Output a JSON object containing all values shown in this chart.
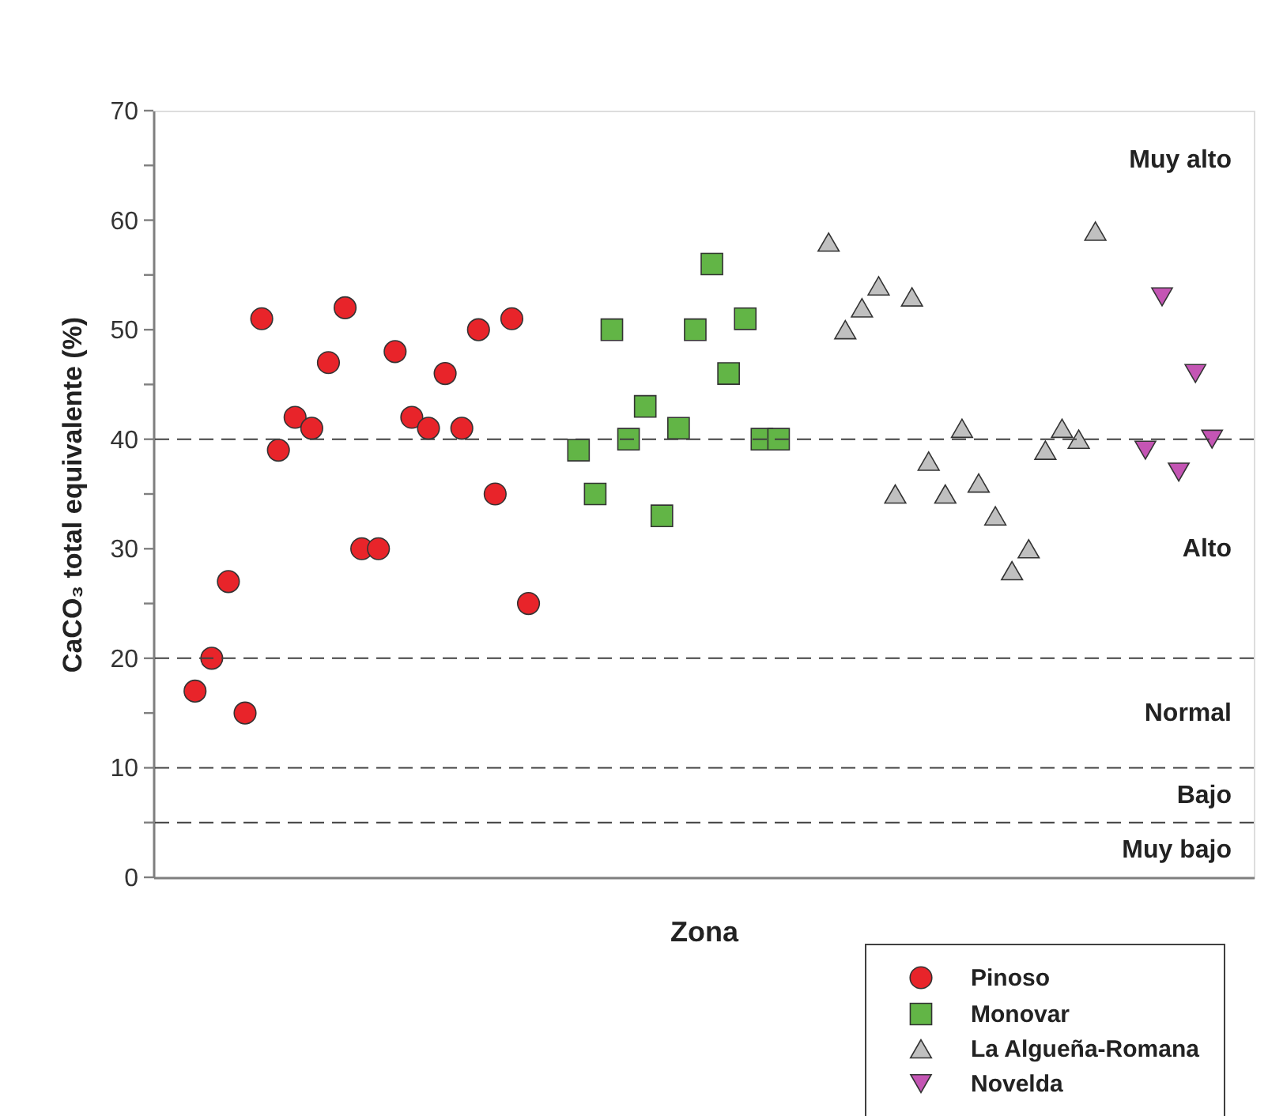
{
  "chart_data": {
    "type": "scatter",
    "xlabel": "Zona",
    "ylabel": "CaCO₃ total equivalente (%)",
    "categories": [
      null,
      null,
      null,
      null,
      null,
      null,
      null,
      null,
      null,
      null,
      null,
      null,
      null,
      null,
      null,
      null,
      null,
      null,
      null,
      null,
      null,
      null,
      null,
      null,
      null,
      null,
      null,
      null,
      null,
      null,
      null,
      null,
      null,
      null,
      null,
      null,
      null,
      null,
      null,
      null,
      null,
      null,
      null,
      null,
      null,
      null,
      null,
      null,
      null,
      null,
      null,
      null,
      null,
      null,
      null,
      null,
      null,
      null,
      null,
      null,
      null,
      null,
      null,
      null,
      null,
      null
    ],
    "ylim": [
      0,
      70
    ],
    "yticks": [
      0,
      {
        "value": 5,
        "label": null
      },
      10,
      {
        "value": 15,
        "label": null
      },
      20,
      {
        "value": 25,
        "label": null
      },
      30,
      {
        "value": 35,
        "label": null
      },
      40,
      {
        "value": 45,
        "label": null
      },
      50,
      {
        "value": 55,
        "label": null
      },
      60,
      {
        "value": 65,
        "label": null
      },
      70
    ],
    "tick_labels": "y",
    "legend": "bottom right",
    "series": [
      {
        "name": "Pinoso",
        "color": "#e8242a",
        "marker": "circle",
        "values": [
          null,
          null,
          17,
          20,
          27,
          15,
          51,
          39,
          42,
          41,
          47,
          52,
          30,
          30,
          48,
          42,
          41,
          46,
          41,
          50,
          35,
          51,
          25,
          null,
          null,
          null,
          null,
          null,
          null,
          null,
          null,
          null,
          null,
          null,
          null,
          null,
          null,
          null,
          null,
          null,
          null,
          null,
          null,
          null,
          null,
          null,
          null,
          null,
          null,
          null,
          null,
          null,
          null,
          null,
          null,
          null,
          null,
          null,
          null,
          null,
          null,
          null,
          null,
          null,
          null,
          null
        ]
      },
      {
        "name": "Monovar",
        "color": "#62b546",
        "marker": "square",
        "values": [
          null,
          null,
          null,
          null,
          null,
          null,
          null,
          null,
          null,
          null,
          null,
          null,
          null,
          null,
          null,
          null,
          null,
          null,
          null,
          null,
          null,
          null,
          null,
          null,
          null,
          39,
          35,
          50,
          40,
          43,
          33,
          41,
          50,
          56,
          46,
          51,
          40,
          40,
          null,
          null,
          null,
          null,
          null,
          null,
          null,
          null,
          null,
          null,
          null,
          null,
          null,
          null,
          null,
          null,
          null,
          null,
          null,
          null,
          null,
          null,
          null,
          null,
          null,
          null,
          null,
          null
        ]
      },
      {
        "name": "La Algueña-Romana",
        "color": "#c0c0c0",
        "marker": "triangle",
        "values": [
          null,
          null,
          null,
          null,
          null,
          null,
          null,
          null,
          null,
          null,
          null,
          null,
          null,
          null,
          null,
          null,
          null,
          null,
          null,
          null,
          null,
          null,
          null,
          null,
          null,
          null,
          null,
          null,
          null,
          null,
          null,
          null,
          null,
          null,
          null,
          null,
          null,
          null,
          null,
          null,
          58,
          50,
          52,
          54,
          35,
          53,
          38,
          35,
          41,
          36,
          33,
          28,
          30,
          39,
          41,
          40,
          59,
          null,
          null,
          null,
          null,
          null,
          null,
          null,
          null,
          null
        ]
      },
      {
        "name": "Novelda",
        "color": "#c455b4",
        "values": [
          null,
          null,
          null,
          null,
          null,
          null,
          null,
          null,
          null,
          null,
          null,
          null,
          null,
          null,
          null,
          null,
          null,
          null,
          null,
          null,
          null,
          null,
          null,
          null,
          null,
          null,
          null,
          null,
          null,
          null,
          null,
          null,
          null,
          null,
          null,
          null,
          null,
          null,
          null,
          null,
          null,
          null,
          null,
          null,
          null,
          null,
          null,
          null,
          null,
          null,
          null,
          null,
          null,
          null,
          null,
          null,
          null,
          null,
          null,
          39,
          53,
          37,
          46,
          40,
          null,
          null
        ]
      }
    ],
    "ref_lines": [
      {
        "axis": "y",
        "value": 40,
        "color": "#404040",
        "line_style": "dashed"
      },
      {
        "axis": "y",
        "value": 20,
        "color": "#404040",
        "line_style": "dashed"
      },
      {
        "axis": "y",
        "value": 10,
        "color": "#404040",
        "line_style": "dashed"
      },
      {
        "axis": "y",
        "value": 5,
        "color": "#404040",
        "line_style": "dashed"
      }
    ],
    "annotations": [
      "Muy alto",
      "Alto",
      "Normal",
      "Bajo",
      "Muy bajo"
    ]
  }
}
